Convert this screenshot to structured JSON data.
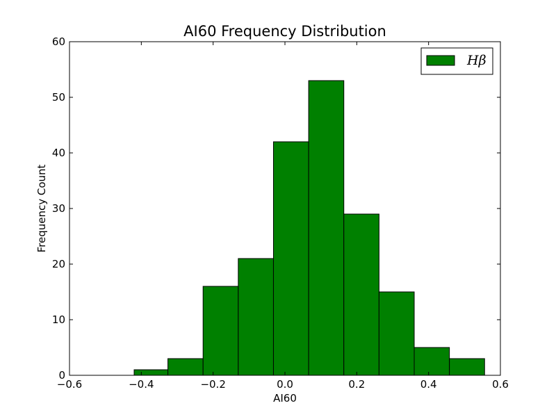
{
  "chart_data": {
    "type": "bar",
    "title": "AI60 Frequency Distribution",
    "xlabel": "AI60",
    "ylabel": "Frequency Count",
    "xlim": [
      -0.6,
      0.6
    ],
    "ylim": [
      0,
      60
    ],
    "x_ticks": [
      "−0.6",
      "−0.4",
      "−0.2",
      "0.0",
      "0.2",
      "0.4",
      "0.6"
    ],
    "x_tick_values": [
      -0.6,
      -0.4,
      -0.2,
      0.0,
      0.2,
      0.4,
      0.6
    ],
    "y_ticks": [
      "0",
      "10",
      "20",
      "30",
      "40",
      "50",
      "60"
    ],
    "y_tick_values": [
      0,
      10,
      20,
      30,
      40,
      50,
      60
    ],
    "bin_edges": [
      -0.42,
      -0.326,
      -0.228,
      -0.13,
      -0.032,
      0.066,
      0.164,
      0.262,
      0.36,
      0.458,
      0.556
    ],
    "values": [
      1,
      3,
      16,
      21,
      42,
      53,
      29,
      15,
      5,
      3
    ],
    "bar_color": "#008000",
    "edge_color": "#000000",
    "grid": false,
    "legend_position": "top-right",
    "series": [
      {
        "name": "Hβ",
        "values": [
          1,
          3,
          16,
          21,
          42,
          53,
          29,
          15,
          5,
          3
        ]
      }
    ]
  }
}
